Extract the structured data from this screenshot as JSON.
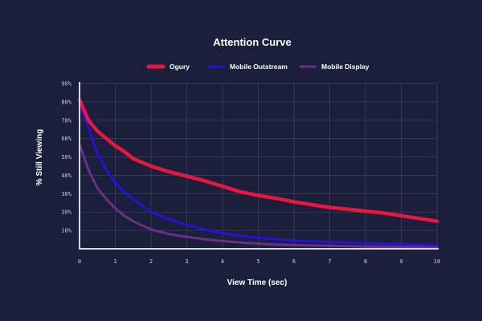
{
  "chart_data": {
    "type": "line",
    "title": "Attention Curve",
    "xlabel": "View Time (sec)",
    "ylabel": "% Still Viewing",
    "xlim": [
      0,
      10
    ],
    "ylim": [
      0,
      90
    ],
    "x_ticks": [
      "0",
      "1",
      "2",
      "3",
      "4",
      "5",
      "6",
      "7",
      "8",
      "9",
      "10"
    ],
    "y_ticks": [
      {
        "value": 10,
        "label": "10%"
      },
      {
        "value": 20,
        "label": "20%"
      },
      {
        "value": 30,
        "label": "30%"
      },
      {
        "value": 40,
        "label": "40%"
      },
      {
        "value": 50,
        "label": "50%"
      },
      {
        "value": 60,
        "label": "60%"
      },
      {
        "value": 70,
        "label": "70%"
      },
      {
        "value": 80,
        "label": "80%"
      },
      {
        "value": 90,
        "label": "90%"
      }
    ],
    "grid": true,
    "legend_position": "top-center",
    "series": [
      {
        "name": "Ogury",
        "color": "#e8173f",
        "points": [
          [
            0,
            81
          ],
          [
            0.25,
            70
          ],
          [
            0.5,
            64
          ],
          [
            0.75,
            60
          ],
          [
            1,
            56
          ],
          [
            1.25,
            53
          ],
          [
            1.5,
            49
          ],
          [
            2,
            45
          ],
          [
            2.5,
            42
          ],
          [
            3,
            39.5
          ],
          [
            3.5,
            37
          ],
          [
            4,
            34
          ],
          [
            4.5,
            31
          ],
          [
            5,
            29
          ],
          [
            5.5,
            27.5
          ],
          [
            6,
            25.5
          ],
          [
            6.5,
            24
          ],
          [
            7,
            22.5
          ],
          [
            7.5,
            21.5
          ],
          [
            8,
            20.5
          ],
          [
            8.5,
            19.5
          ],
          [
            9,
            18
          ],
          [
            9.5,
            16.5
          ],
          [
            10,
            15
          ]
        ]
      },
      {
        "name": "Mobile Outstream",
        "color": "#2a0fd6",
        "points": [
          [
            0,
            79
          ],
          [
            0.25,
            66
          ],
          [
            0.5,
            52
          ],
          [
            0.75,
            43
          ],
          [
            1,
            36
          ],
          [
            1.25,
            31
          ],
          [
            1.5,
            27
          ],
          [
            2,
            20
          ],
          [
            2.5,
            16
          ],
          [
            3,
            13
          ],
          [
            3.5,
            10.5
          ],
          [
            4,
            8.5
          ],
          [
            4.5,
            7
          ],
          [
            5,
            6
          ],
          [
            5.5,
            5.2
          ],
          [
            6,
            4.5
          ],
          [
            6.5,
            4
          ],
          [
            7,
            3.8
          ],
          [
            7.5,
            3.4
          ],
          [
            8,
            3
          ],
          [
            8.5,
            2.8
          ],
          [
            9,
            2.5
          ],
          [
            9.5,
            2.2
          ],
          [
            10,
            2
          ]
        ]
      },
      {
        "name": "Mobile Display",
        "color": "#6a2f86",
        "points": [
          [
            0,
            57
          ],
          [
            0.25,
            43
          ],
          [
            0.5,
            33
          ],
          [
            0.75,
            27
          ],
          [
            1,
            22
          ],
          [
            1.25,
            18
          ],
          [
            1.5,
            15
          ],
          [
            2,
            10.5
          ],
          [
            2.5,
            8
          ],
          [
            3,
            6.5
          ],
          [
            3.5,
            5.2
          ],
          [
            4,
            4.2
          ],
          [
            4.5,
            3.4
          ],
          [
            5,
            2.8
          ],
          [
            5.5,
            2.3
          ],
          [
            6,
            2
          ],
          [
            6.5,
            1.8
          ],
          [
            7,
            1.6
          ],
          [
            7.5,
            1.4
          ],
          [
            8,
            1.2
          ],
          [
            8.5,
            1.1
          ],
          [
            9,
            1
          ],
          [
            9.5,
            0.9
          ],
          [
            10,
            0.8
          ]
        ]
      }
    ]
  }
}
